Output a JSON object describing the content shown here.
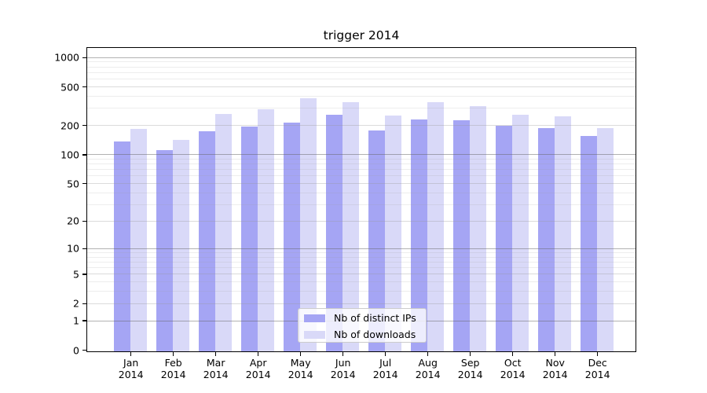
{
  "title": "trigger 2014",
  "legend": {
    "items": [
      {
        "label": "Nb of distinct IPs",
        "color": "#a5a5f4"
      },
      {
        "label": "Nb of downloads",
        "color": "#d9d9f8"
      }
    ]
  },
  "axes": {
    "y_tick_labels": [
      "0",
      "1",
      "2",
      "5",
      "10",
      "20",
      "50",
      "100",
      "200",
      "500",
      "1000"
    ],
    "x_tick_labels": [
      "Jan 2014",
      "Feb 2014",
      "Mar 2014",
      "Apr 2014",
      "May 2014",
      "Jun 2014",
      "Jul 2014",
      "Aug 2014",
      "Sep 2014",
      "Oct 2014",
      "Nov 2014",
      "Dec 2014"
    ]
  },
  "chart_data": {
    "type": "bar",
    "title": "trigger 2014",
    "categories": [
      "Jan 2014",
      "Feb 2014",
      "Mar 2014",
      "Apr 2014",
      "May 2014",
      "Jun 2014",
      "Jul 2014",
      "Aug 2014",
      "Sep 2014",
      "Oct 2014",
      "Nov 2014",
      "Dec 2014"
    ],
    "series": [
      {
        "name": "Nb of distinct IPs",
        "color": "#a5a5f4",
        "values": [
          135,
          110,
          172,
          193,
          210,
          255,
          176,
          227,
          223,
          195,
          186,
          152
        ]
      },
      {
        "name": "Nb of downloads",
        "color": "#d9d9f8",
        "values": [
          181,
          139,
          258,
          288,
          375,
          342,
          247,
          342,
          313,
          254,
          244,
          185
        ]
      }
    ],
    "xlabel": "",
    "ylabel": "",
    "yscale": "log1p",
    "yticks": [
      0,
      1,
      2,
      5,
      10,
      20,
      50,
      100,
      200,
      500,
      1000
    ],
    "decade_gridlines": [
      1,
      10,
      100,
      1000
    ],
    "minor_gridlines": [
      3,
      4,
      6,
      7,
      8,
      9,
      30,
      40,
      60,
      70,
      80,
      90,
      300,
      400,
      600,
      700,
      800,
      900
    ],
    "ylim": [
      0,
      1270
    ],
    "grid": true,
    "grid_above_bars": true,
    "legend_position": "lower center"
  },
  "colors": {
    "background": "#ffffff",
    "spine": "#000000",
    "bar_dark": "#a5a5f4",
    "bar_light": "#d9d9f8",
    "legend_border": "#cccccc"
  }
}
